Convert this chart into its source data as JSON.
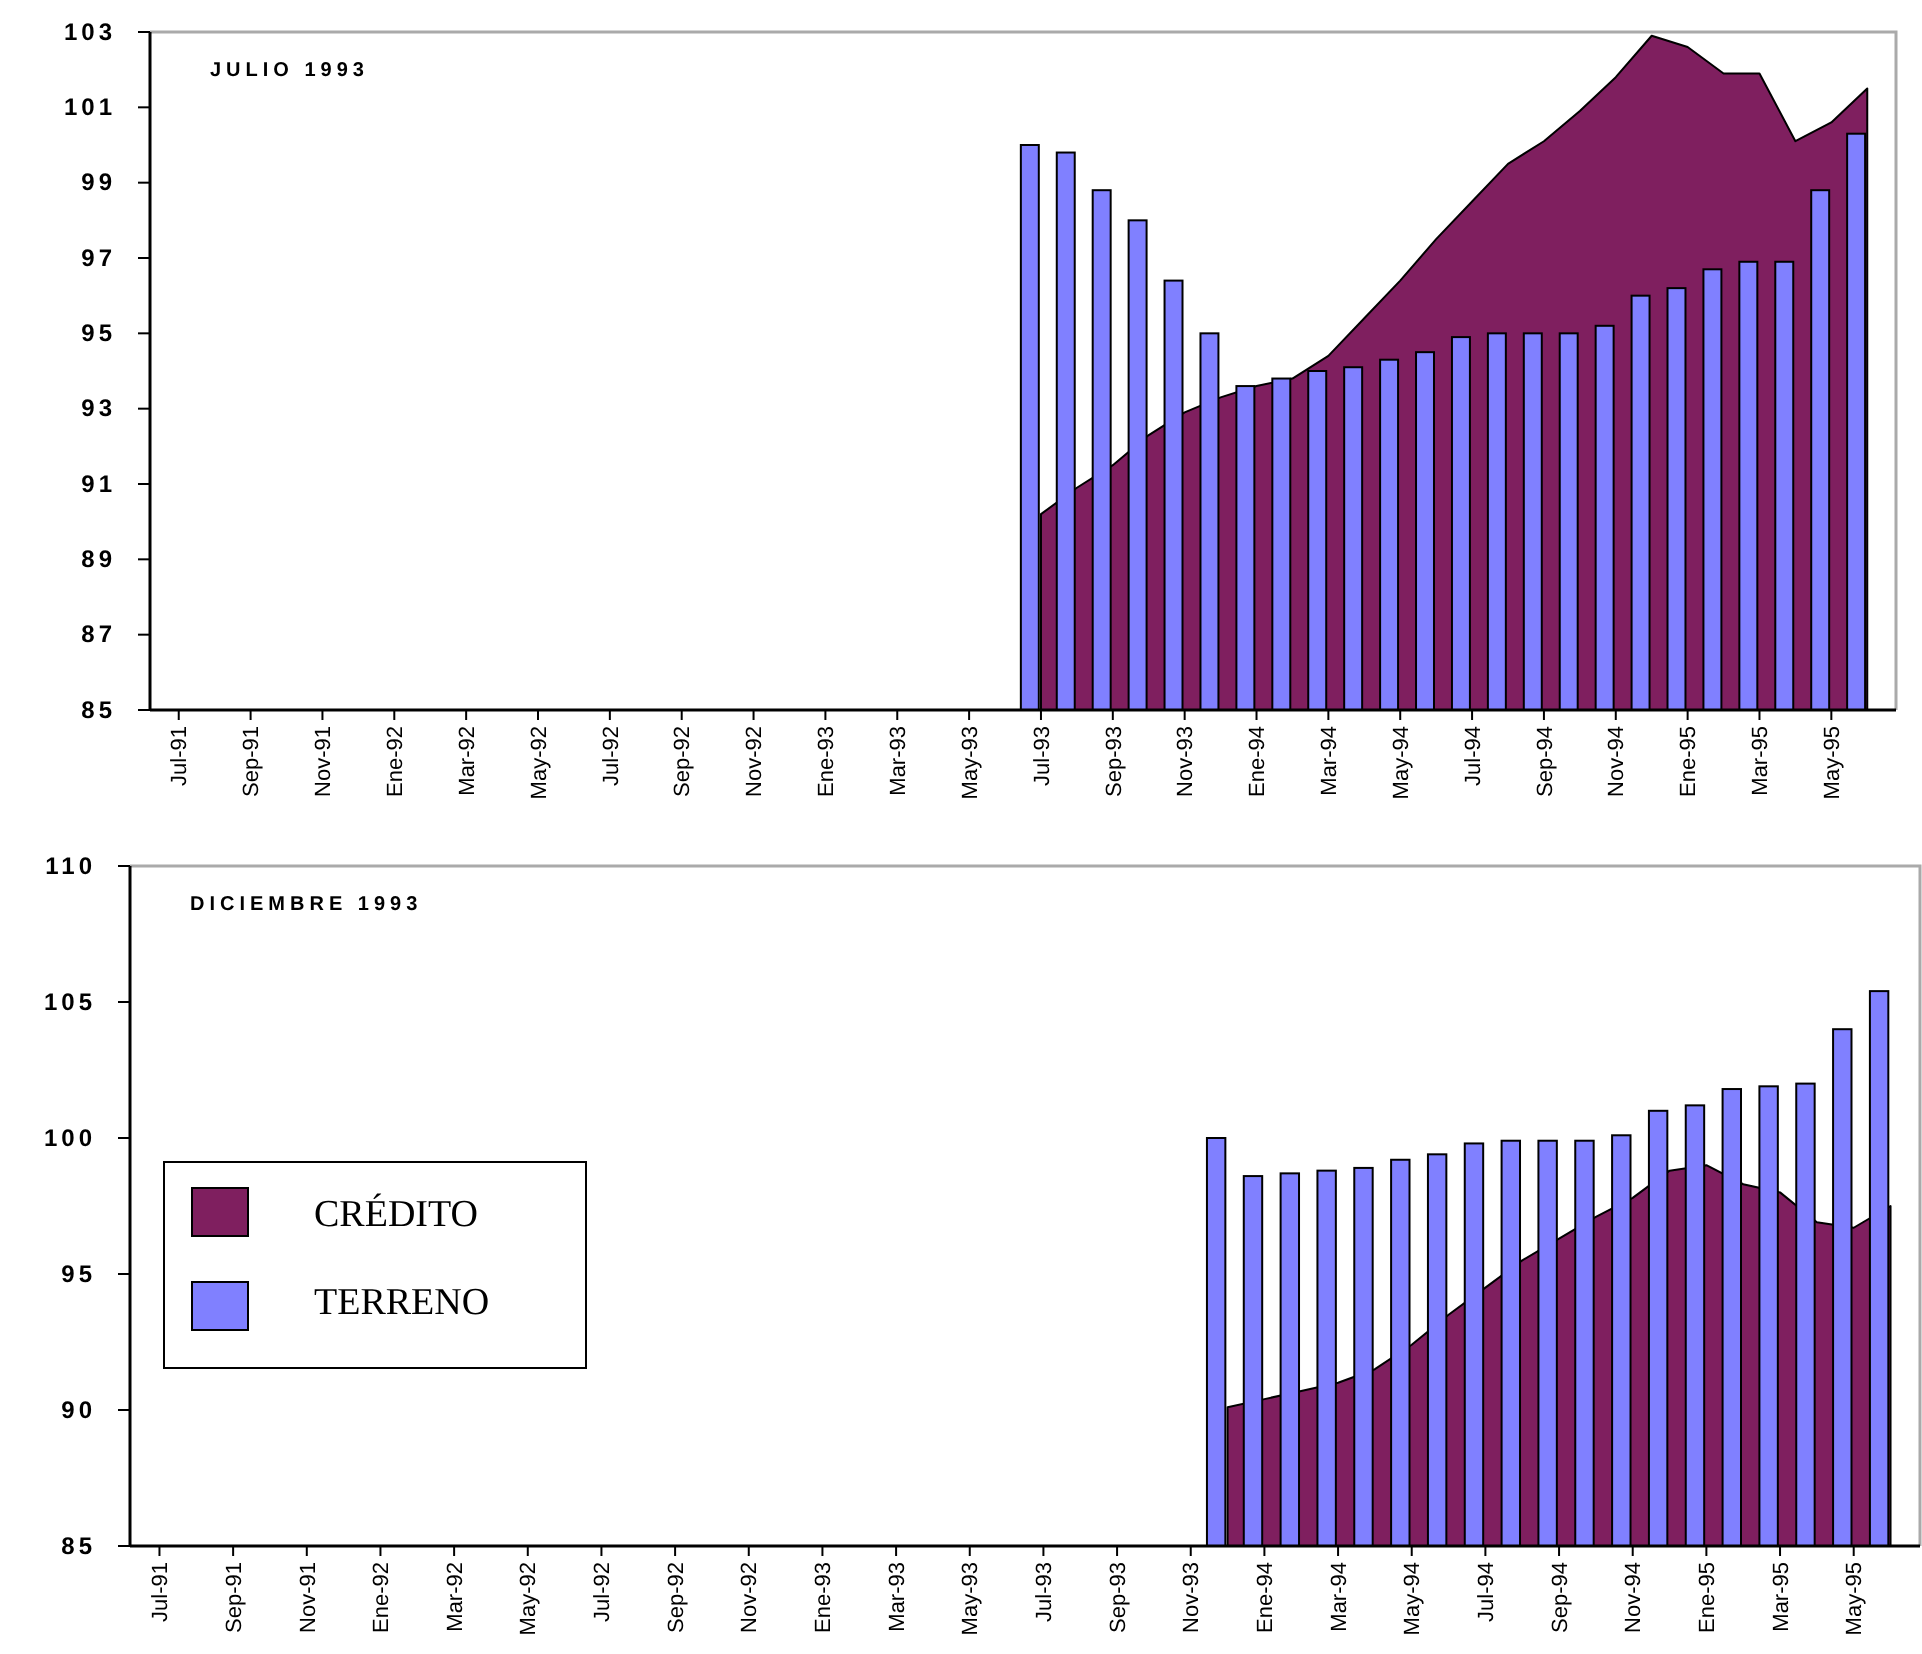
{
  "chart_data": [
    {
      "type": "bar",
      "title": "JULIO 1993",
      "categories": [
        "Jul-91",
        null,
        "Sep-91",
        null,
        "Nov-91",
        null,
        "Ene-92",
        null,
        "Mar-92",
        null,
        "May-92",
        null,
        "Jul-92",
        null,
        "Sep-92",
        null,
        "Nov-92",
        null,
        "Ene-93",
        null,
        "Mar-93",
        null,
        "May-93",
        null,
        "Jul-93",
        null,
        "Sep-93",
        null,
        "Nov-93",
        null,
        "Ene-94",
        null,
        "Mar-94",
        null,
        "May-94",
        null,
        "Jul-94",
        null,
        "Sep-94",
        null,
        "Nov-94",
        null,
        "Ene-95",
        null,
        "Mar-95",
        null,
        "May-95",
        null
      ],
      "series": [
        {
          "type": "area",
          "color": "#7f1f5f",
          "values": [
            null,
            null,
            null,
            null,
            null,
            null,
            null,
            null,
            null,
            null,
            null,
            null,
            null,
            null,
            null,
            null,
            null,
            null,
            null,
            null,
            null,
            null,
            null,
            null,
            90.2,
            90.9,
            91.5,
            92.3,
            92.9,
            93.3,
            93.6,
            93.8,
            94.4,
            95.4,
            96.4,
            97.5,
            98.5,
            99.5,
            100.1,
            100.9,
            101.8,
            102.9,
            102.6,
            101.9,
            101.9,
            100.1,
            100.6,
            101.5
          ]
        },
        {
          "type": "bar",
          "color": "#8080ff",
          "values": [
            null,
            null,
            null,
            null,
            null,
            null,
            null,
            null,
            null,
            null,
            null,
            null,
            null,
            null,
            null,
            null,
            null,
            null,
            null,
            null,
            null,
            null,
            null,
            null,
            100,
            99.8,
            98.8,
            98.0,
            96.4,
            95.0,
            93.6,
            93.8,
            94.0,
            94.1,
            94.3,
            94.5,
            94.9,
            95.0,
            95.0,
            95.0,
            95.2,
            96.0,
            96.2,
            96.7,
            96.9,
            96.9,
            98.8,
            100.3
          ]
        }
      ],
      "ylim": [
        85,
        103
      ],
      "yticks": [
        85,
        87,
        89,
        91,
        93,
        95,
        97,
        99,
        101,
        103
      ]
    },
    {
      "type": "bar",
      "title": "DICIEMBRE 1993",
      "categories": [
        "Jul-91",
        null,
        "Sep-91",
        null,
        "Nov-91",
        null,
        "Ene-92",
        null,
        "Mar-92",
        null,
        "May-92",
        null,
        "Jul-92",
        null,
        "Sep-92",
        null,
        "Nov-92",
        null,
        "Ene-93",
        null,
        "Mar-93",
        null,
        "May-93",
        null,
        "Jul-93",
        null,
        "Sep-93",
        null,
        "Nov-93",
        null,
        "Ene-94",
        null,
        "Mar-94",
        null,
        "May-94",
        null,
        "Jul-94",
        null,
        "Sep-94",
        null,
        "Nov-94",
        null,
        "Ene-95",
        null,
        "Mar-95",
        null,
        "May-95",
        null
      ],
      "series": [
        {
          "type": "area",
          "name": "CRÉDITO",
          "color": "#7f1f5f",
          "values": [
            null,
            null,
            null,
            null,
            null,
            null,
            null,
            null,
            null,
            null,
            null,
            null,
            null,
            null,
            null,
            null,
            null,
            null,
            null,
            null,
            null,
            null,
            null,
            null,
            null,
            null,
            null,
            null,
            null,
            90.1,
            90.4,
            90.7,
            91.0,
            91.5,
            92.4,
            93.5,
            94.5,
            95.5,
            96.3,
            97.1,
            97.8,
            98.8,
            99.0,
            98.3,
            98.0,
            96.9,
            96.7,
            97.5
          ]
        },
        {
          "type": "bar",
          "name": "TERRENO",
          "color": "#8080ff",
          "values": [
            null,
            null,
            null,
            null,
            null,
            null,
            null,
            null,
            null,
            null,
            null,
            null,
            null,
            null,
            null,
            null,
            null,
            null,
            null,
            null,
            null,
            null,
            null,
            null,
            null,
            null,
            null,
            null,
            null,
            100,
            98.6,
            98.7,
            98.8,
            98.9,
            99.2,
            99.4,
            99.8,
            99.9,
            99.9,
            99.9,
            100.1,
            101.0,
            101.2,
            101.8,
            101.9,
            102.0,
            104.0,
            105.4
          ]
        }
      ],
      "ylim": [
        85,
        110
      ],
      "yticks": [
        85,
        90,
        95,
        100,
        105,
        110
      ],
      "legend": "left"
    }
  ]
}
